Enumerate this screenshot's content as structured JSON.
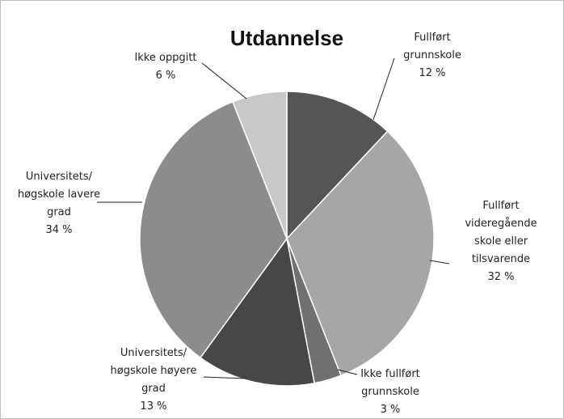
{
  "chart_data": {
    "type": "pie",
    "title": "Utdannelse",
    "categories": [
      "Fullført\ngrunnskole",
      "Fullført\nvideregående\nskole eller\ntilsvarende",
      "Ikke fullført\ngrunnskole",
      "Universitets/\nhøgskole høyere\ngrad",
      "Universitets/\nhøgskole lavere\ngrad",
      "Ikke oppgitt"
    ],
    "values": [
      12,
      32,
      3,
      13,
      34,
      6
    ],
    "value_labels": [
      "12 %",
      "32 %",
      "3 %",
      "13 %",
      "34 %",
      "6 %"
    ],
    "colors": [
      "#555555",
      "#a6a6a6",
      "#707070",
      "#474747",
      "#8c8c8c",
      "#c8c8c8"
    ]
  }
}
